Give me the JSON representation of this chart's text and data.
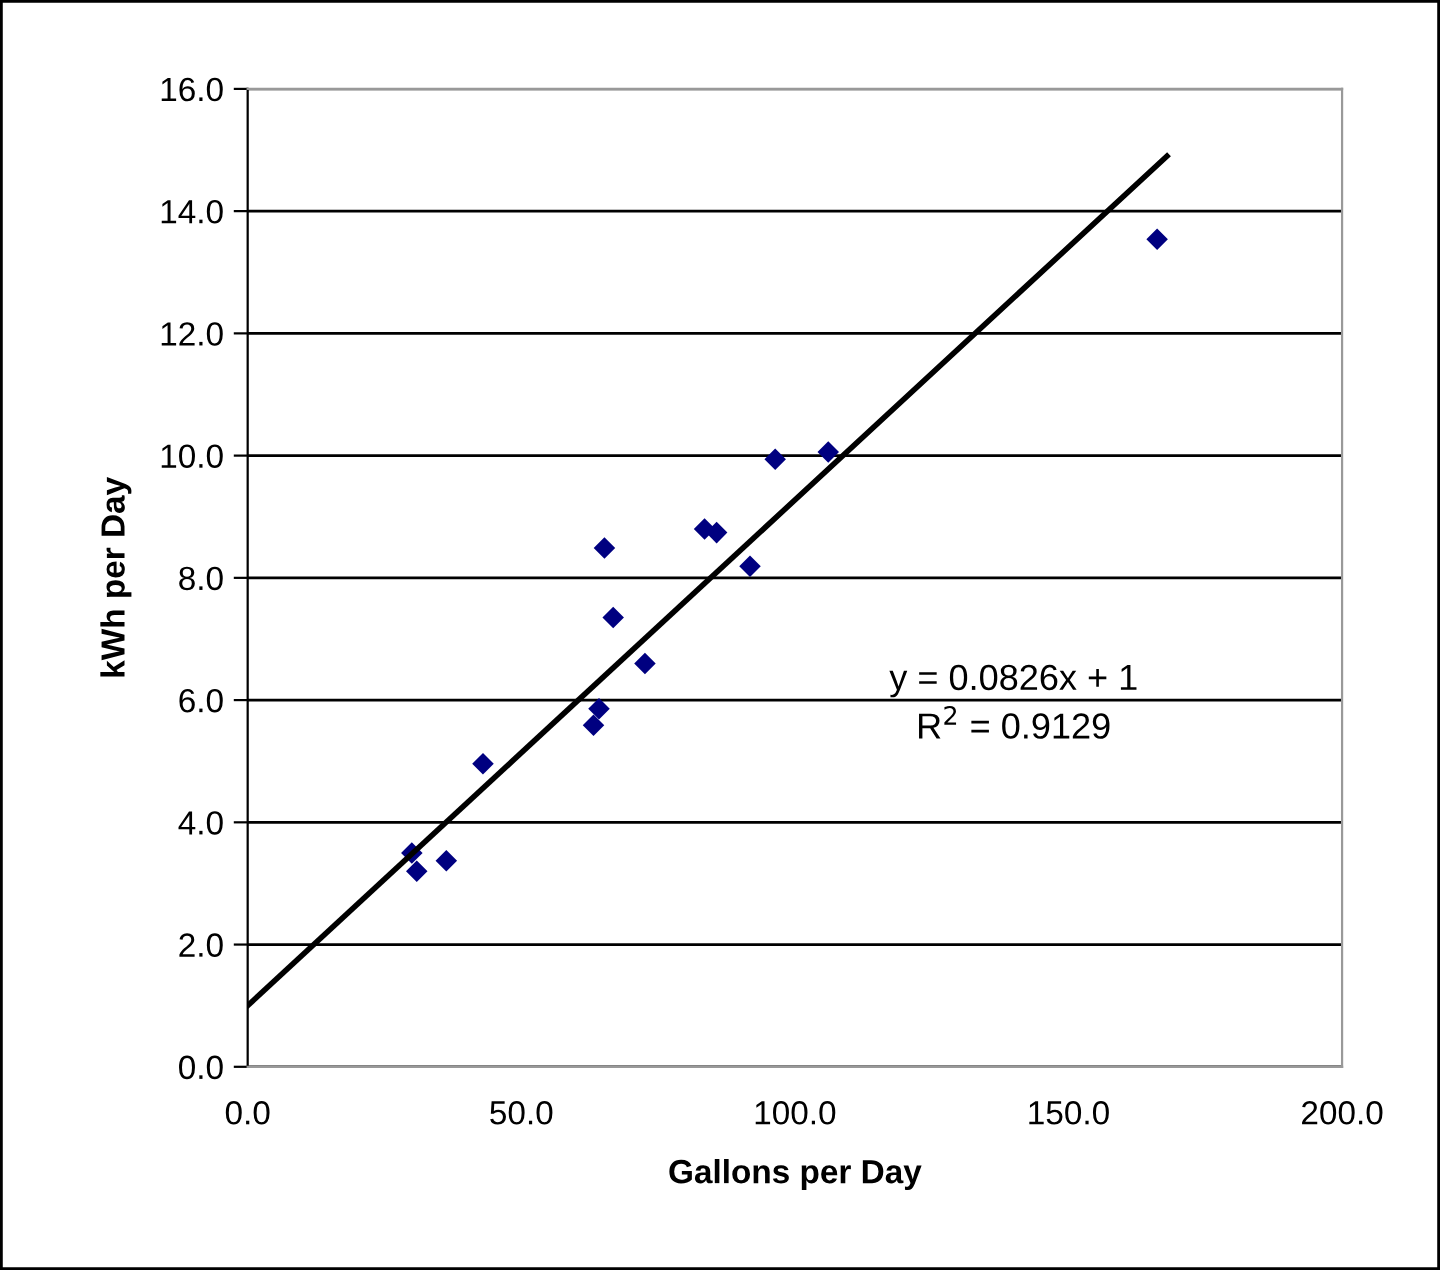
{
  "chart_data": {
    "type": "scatter",
    "xlabel": "Gallons per Day",
    "ylabel": "kWh per Day",
    "series": [
      {
        "color": "#000080",
        "marker": "diamond",
        "x": [
          30.0,
          30.9,
          36.3,
          43.0,
          63.2,
          64.2,
          66.8,
          72.6,
          96.4,
          106.1,
          83.5,
          85.7,
          91.8,
          65.2,
          166.2
        ],
        "values": [
          3.5,
          3.2,
          3.37,
          4.96,
          5.59,
          5.86,
          7.35,
          6.6,
          9.94,
          10.06,
          8.8,
          8.74,
          8.19,
          8.49,
          13.54
        ]
      },
      {
        "type": "line",
        "color": "#000000",
        "marker": "none",
        "line_style": "solid",
        "x": [
          0,
          168
        ],
        "values": [
          1.0,
          14.9
        ]
      }
    ],
    "annotations": [
      "y = 0.0826x + 1",
      "R$^{2}$ = 0.9129"
    ],
    "xlim": [
      0,
      200
    ],
    "ylim": [
      0,
      16
    ],
    "xticks": [
      {
        "value": 0,
        "label": "0.0"
      },
      {
        "value": 50,
        "label": "50.0"
      },
      {
        "value": 100,
        "label": "100.0"
      },
      {
        "value": 150,
        "label": "150.0"
      },
      {
        "value": 200,
        "label": "200.0"
      }
    ],
    "yticks": [
      {
        "value": 0,
        "label": "0.0"
      },
      {
        "value": 2,
        "label": "2.0"
      },
      {
        "value": 4,
        "label": "4.0"
      },
      {
        "value": 6,
        "label": "6.0"
      },
      {
        "value": 8,
        "label": "8.0"
      },
      {
        "value": 10,
        "label": "10.0"
      },
      {
        "value": 12,
        "label": "12.0"
      },
      {
        "value": 14,
        "label": "14.0"
      },
      {
        "value": 16,
        "label": "16.0"
      }
    ],
    "grid": "y",
    "legend": false
  }
}
